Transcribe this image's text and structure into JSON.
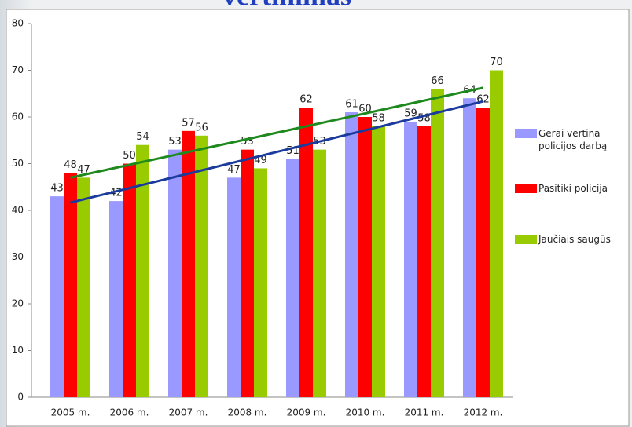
{
  "chart_data": {
    "type": "bar",
    "title": "vertinimas",
    "categories": [
      "2005 m.",
      "2006 m.",
      "2007 m.",
      "2008 m.",
      "2009 m.",
      "2010 m.",
      "2011 m.",
      "2012 m."
    ],
    "series": [
      {
        "name": "Gerai vertina policijos darbą",
        "color": "#9999ff",
        "values": [
          43,
          42,
          53,
          47,
          51,
          61,
          59,
          64
        ]
      },
      {
        "name": "Pasitiki policija",
        "color": "#ff0000",
        "values": [
          48,
          50,
          57,
          53,
          62,
          60,
          58,
          62
        ]
      },
      {
        "name": "Jaučiais saugūs",
        "color": "#99cc00",
        "values": [
          47,
          54,
          56,
          49,
          53,
          58,
          66,
          70
        ]
      }
    ],
    "trendlines": [
      {
        "series": 0,
        "color": "#1a3a9c"
      },
      {
        "series": 2,
        "color": "#1e8a1e"
      }
    ],
    "ylim": [
      0,
      80
    ],
    "yticks": [
      0,
      10,
      20,
      30,
      40,
      50,
      60,
      70,
      80
    ],
    "grid": false,
    "legend": "right"
  }
}
